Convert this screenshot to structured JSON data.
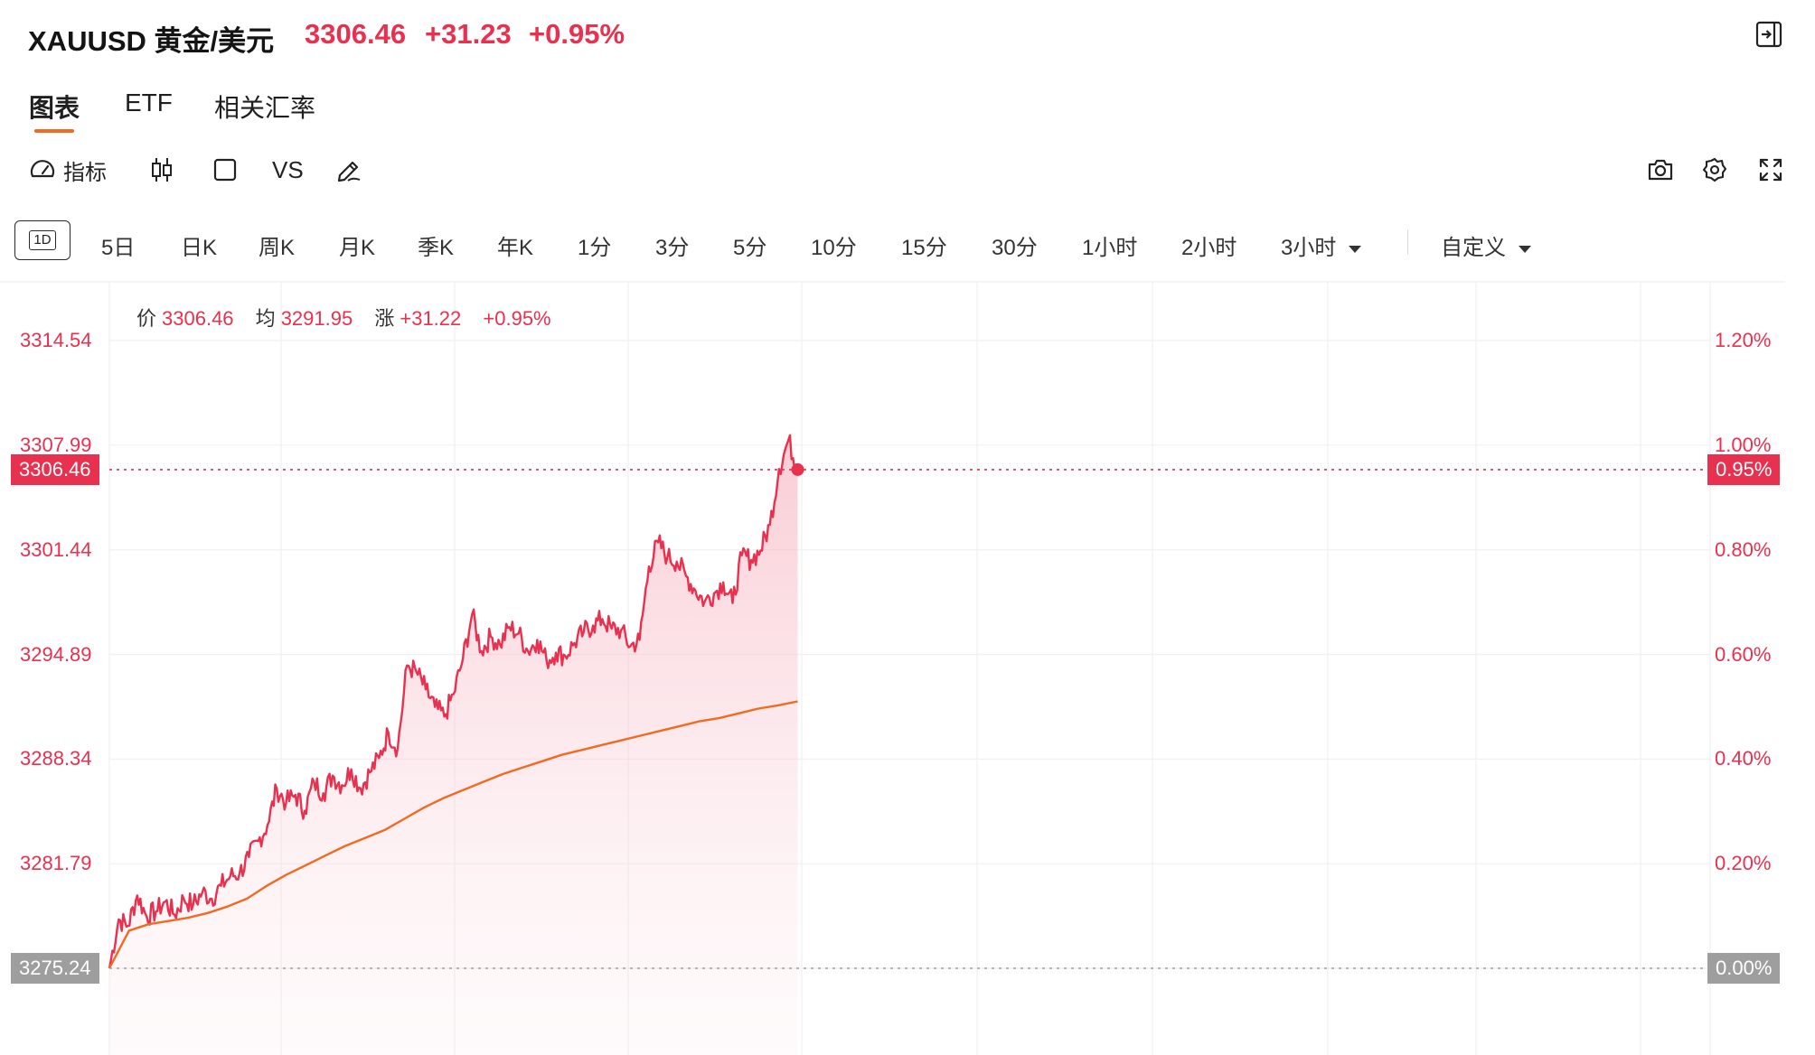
{
  "header": {
    "symbol": "XAUUSD 黄金/美元",
    "price": "3306.46",
    "change": "+31.23",
    "change_pct": "+0.95%",
    "collapse_icon": "panel-collapse-icon"
  },
  "tabs": [
    {
      "label": "图表",
      "active": true
    },
    {
      "label": "ETF",
      "active": false
    },
    {
      "label": "相关汇率",
      "active": false
    }
  ],
  "toolbar": {
    "indicator_label": "指标",
    "vs_label": "VS",
    "icons": [
      "gauge-icon",
      "candlestick-icon",
      "square-icon",
      "pen-icon",
      "camera-icon",
      "gear-icon",
      "fullscreen-icon"
    ]
  },
  "periods": {
    "selected": "1D",
    "items": [
      "5日",
      "日K",
      "周K",
      "月K",
      "季K",
      "年K",
      "1分",
      "3分",
      "5分",
      "10分",
      "15分",
      "30分",
      "1小时",
      "2小时",
      "3小时"
    ],
    "custom": "自定义"
  },
  "legend": {
    "price_key": "价",
    "price_val": "3306.46",
    "avg_key": "均",
    "avg_val": "3291.95",
    "chg_key": "涨",
    "chg_val": "+31.22",
    "pct_val": "+0.95%"
  },
  "colors": {
    "up": "#e8304f",
    "avg_line": "#f26a21",
    "grid": "#f0f0f0",
    "baseline_tag": "#9e9e9e"
  },
  "chart_data": {
    "type": "line",
    "yaxis_left": [
      "3314.54",
      "3307.99",
      "3301.44",
      "3294.89",
      "3288.34",
      "3281.79",
      "3275.24"
    ],
    "yaxis_right": [
      "1.20%",
      "1.00%",
      "0.80%",
      "0.60%",
      "0.40%",
      "0.20%",
      "0.00%"
    ],
    "ylim": [
      3275.24,
      3314.54
    ],
    "prev_close": 3275.24,
    "last_price_tag": "3306.46",
    "last_pct_tag": "0.95%",
    "baseline_tag": "3275.24",
    "baseline_pct_tag": "0.00%",
    "session_fraction_elapsed": 0.43,
    "series": [
      {
        "name": "价",
        "values": [
          3275.24,
          3278.3,
          3277.9,
          3279.8,
          3278.5,
          3278.8,
          3279.4,
          3278.6,
          3279.6,
          3279.2,
          3280.0,
          3279.6,
          3280.4,
          3281.0,
          3281.2,
          3282.2,
          3283.2,
          3284.2,
          3286.5,
          3285.6,
          3286.1,
          3285.1,
          3286.9,
          3286.2,
          3287.3,
          3286.7,
          3287.7,
          3286.5,
          3287.5,
          3288.4,
          3290.0,
          3289.0,
          3294.2,
          3293.8,
          3292.7,
          3291.6,
          3291.0,
          3292.4,
          3294.6,
          3297.4,
          3295.1,
          3296.0,
          3295.5,
          3296.6,
          3296.2,
          3295.1,
          3295.8,
          3294.5,
          3295.0,
          3294.8,
          3295.6,
          3296.3,
          3296.7,
          3297.1,
          3296.5,
          3296.4,
          3295.4,
          3295.8,
          3300.4,
          3301.9,
          3301.0,
          3300.7,
          3299.8,
          3298.9,
          3298.2,
          3298.7,
          3299.4,
          3298.1,
          3301.1,
          3300.8,
          3301.4,
          3303.0,
          3306.5,
          3308.3,
          3306.46
        ]
      },
      {
        "name": "均",
        "values": [
          3275.24,
          3277.6,
          3278.0,
          3278.2,
          3278.4,
          3278.7,
          3279.1,
          3279.6,
          3280.4,
          3281.1,
          3281.7,
          3282.3,
          3282.9,
          3283.4,
          3283.9,
          3284.6,
          3285.3,
          3285.9,
          3286.4,
          3286.9,
          3287.4,
          3287.8,
          3288.2,
          3288.6,
          3288.9,
          3289.2,
          3289.5,
          3289.8,
          3290.1,
          3290.4,
          3290.7,
          3290.9,
          3291.2,
          3291.5,
          3291.7,
          3291.95
        ]
      }
    ]
  }
}
